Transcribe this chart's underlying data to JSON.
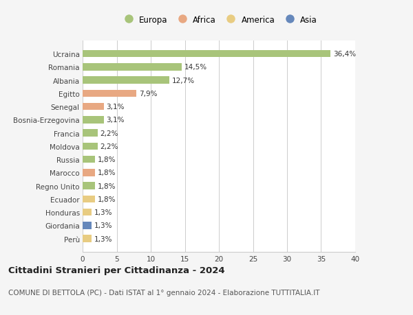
{
  "countries": [
    "Ucraina",
    "Romania",
    "Albania",
    "Egitto",
    "Senegal",
    "Bosnia-Erzegovina",
    "Francia",
    "Moldova",
    "Russia",
    "Marocco",
    "Regno Unito",
    "Ecuador",
    "Honduras",
    "Giordania",
    "Perù"
  ],
  "values": [
    36.4,
    14.5,
    12.7,
    7.9,
    3.1,
    3.1,
    2.2,
    2.2,
    1.8,
    1.8,
    1.8,
    1.8,
    1.3,
    1.3,
    1.3
  ],
  "labels": [
    "36,4%",
    "14,5%",
    "12,7%",
    "7,9%",
    "3,1%",
    "3,1%",
    "2,2%",
    "2,2%",
    "1,8%",
    "1,8%",
    "1,8%",
    "1,8%",
    "1,3%",
    "1,3%",
    "1,3%"
  ],
  "continents": [
    "Europa",
    "Europa",
    "Europa",
    "Africa",
    "Africa",
    "Europa",
    "Europa",
    "Europa",
    "Europa",
    "Africa",
    "Europa",
    "America",
    "America",
    "Asia",
    "America"
  ],
  "colors": {
    "Europa": "#a8c47a",
    "Africa": "#e8a882",
    "America": "#e8cc82",
    "Asia": "#6688bb"
  },
  "xlim": [
    0,
    40
  ],
  "xticks": [
    0,
    5,
    10,
    15,
    20,
    25,
    30,
    35,
    40
  ],
  "title": "Cittadini Stranieri per Cittadinanza - 2024",
  "subtitle": "COMUNE DI BETTOLA (PC) - Dati ISTAT al 1° gennaio 2024 - Elaborazione TUTTITALIA.IT",
  "bg_color": "#f5f5f5",
  "plot_bg_color": "#ffffff",
  "grid_color": "#cccccc",
  "label_fontsize": 7.5,
  "title_fontsize": 9.5,
  "subtitle_fontsize": 7.5,
  "tick_fontsize": 7.5,
  "legend_fontsize": 8.5,
  "bar_height": 0.55
}
